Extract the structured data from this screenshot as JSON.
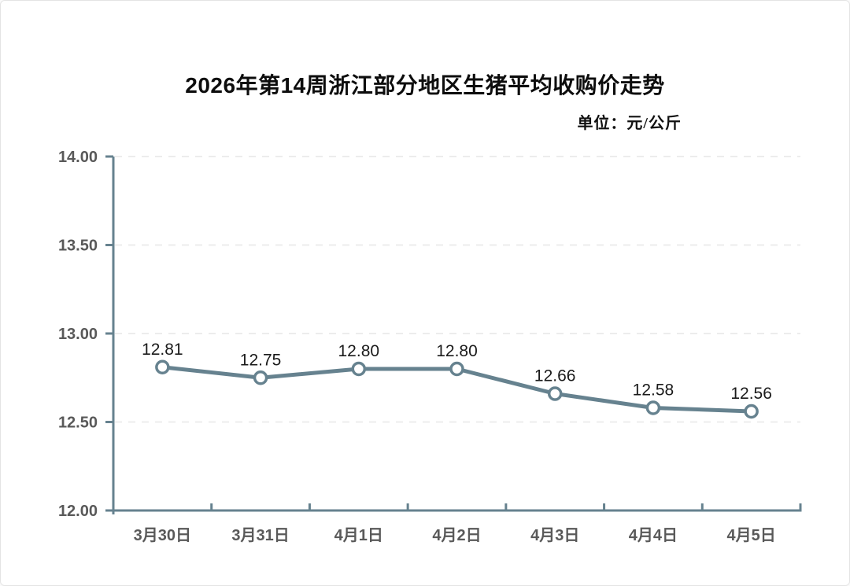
{
  "header": {
    "title": "2026年第14周浙江部分地区生猪平均收购价走势",
    "unit_label": "单位：元/公斤"
  },
  "chart_data": {
    "type": "line",
    "title": "2026年第14周浙江部分地区生猪平均收购价走势",
    "unit": "元/公斤",
    "categories": [
      "3月30日",
      "3月31日",
      "4月1日",
      "4月2日",
      "4月3日",
      "4月4日",
      "4月5日"
    ],
    "values": [
      12.81,
      12.75,
      12.8,
      12.8,
      12.66,
      12.58,
      12.56
    ],
    "point_labels": [
      "12.81",
      "12.75",
      "12.80",
      "12.80",
      "12.66",
      "12.58",
      "12.56"
    ],
    "ylim": [
      12.0,
      14.0
    ],
    "yticks": [
      12.0,
      12.5,
      13.0,
      13.5,
      14.0
    ],
    "ytick_labels": [
      "12.00",
      "12.50",
      "13.00",
      "13.50",
      "14.00"
    ],
    "xlabel": "",
    "ylabel": "",
    "legend": "none",
    "grid": "horizontal-dashed",
    "marker": "circle-open",
    "colors": {
      "line": "#66828F",
      "axis": "#66828F",
      "marker_fill": "#ffffff",
      "gridline": "#ececec",
      "tick_label": "#595959",
      "data_label": "#1a1a1a"
    }
  }
}
